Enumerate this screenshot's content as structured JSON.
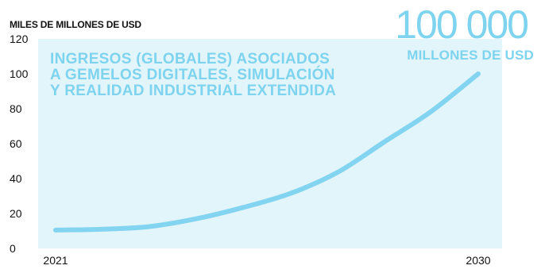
{
  "colors": {
    "accent": "#7ed3ef",
    "plot_fill": "#e2f5fb",
    "line": "#82d4f0",
    "text": "#111111"
  },
  "chart_data": {
    "type": "line",
    "title": "INGRESOS (GLOBALES) ASOCIADOS A GEMELOS DIGITALES, SIMULACIÓN Y REALIDAD INDUSTRIAL EXTENDIDA",
    "title_lines": [
      "INGRESOS (GLOBALES) ASOCIADOS",
      "A GEMELOS DIGITALES, SIMULACIÓN",
      "Y REALIDAD INDUSTRIAL EXTENDIDA"
    ],
    "ylabel": "MILES DE MILLONES DE USD",
    "xlabel": "",
    "x": [
      2021,
      2022,
      2023,
      2024,
      2025,
      2026,
      2027,
      2028,
      2029,
      2030
    ],
    "x_tick_labels": [
      "2021",
      "2030"
    ],
    "y_ticks": [
      0,
      20,
      40,
      60,
      80,
      100,
      120
    ],
    "y_tick_labels": [
      "0",
      "20",
      "40",
      "60",
      "80",
      "100",
      "120"
    ],
    "ylim": [
      0,
      120
    ],
    "xlim": [
      2021,
      2030
    ],
    "grid": false,
    "series": [
      {
        "values": [
          10.5,
          11,
          12.5,
          17,
          23.5,
          31.5,
          43.5,
          61,
          78.5,
          100
        ]
      }
    ],
    "annotation": {
      "value": "100 000",
      "unit": "MILLONES DE USD"
    }
  }
}
